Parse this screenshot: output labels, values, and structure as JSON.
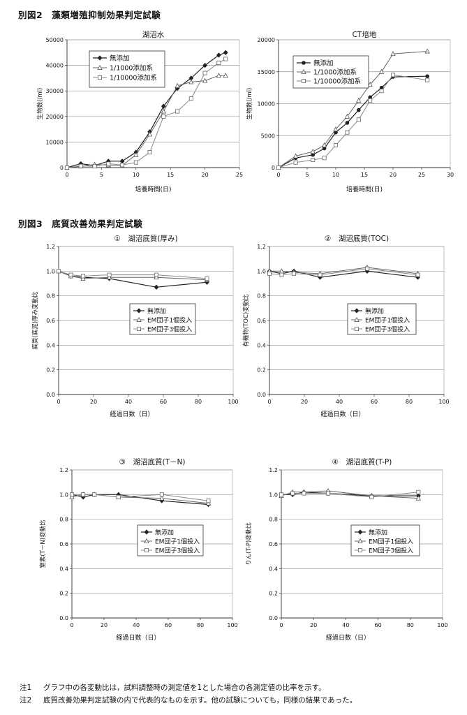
{
  "sections": {
    "fig2_heading": "別図2　藻類増殖抑制効果判定試験",
    "fig3_heading": "別図3　底質改善効果判定試験"
  },
  "chart_data": [
    {
      "id": "c1",
      "type": "line",
      "title": "湖沼水",
      "xlabel": "培養時間(日)",
      "ylabel": "生物数(/ml)",
      "xlim": [
        0,
        25
      ],
      "xticks": [
        0,
        5,
        10,
        15,
        20,
        25
      ],
      "ylim": [
        0,
        50000
      ],
      "yticks": [
        0,
        10000,
        20000,
        30000,
        40000,
        50000
      ],
      "grid": "horizontal",
      "legend_position": "top-left",
      "series": [
        {
          "name": "無添加",
          "marker": "diamond-filled",
          "x": [
            0,
            2,
            4,
            6,
            8,
            10,
            12,
            14,
            16,
            18,
            20,
            22,
            23
          ],
          "y": [
            0,
            1500,
            800,
            2500,
            2500,
            6000,
            14000,
            24000,
            31000,
            35000,
            40000,
            44000,
            45000
          ]
        },
        {
          "name": "1/1000添加系",
          "marker": "triangle-open",
          "x": [
            0,
            2,
            4,
            6,
            8,
            10,
            12,
            14,
            16,
            18,
            20,
            22,
            23
          ],
          "y": [
            0,
            500,
            1200,
            1000,
            800,
            5000,
            13000,
            22000,
            32000,
            33500,
            34000,
            36000,
            36000
          ]
        },
        {
          "name": "1/10000添加系",
          "marker": "square-open",
          "x": [
            0,
            2,
            4,
            6,
            8,
            10,
            12,
            14,
            16,
            18,
            20,
            22,
            23
          ],
          "y": [
            0,
            600,
            500,
            1500,
            1000,
            2000,
            6000,
            20000,
            22000,
            27000,
            37000,
            41000,
            42500
          ]
        }
      ]
    },
    {
      "id": "c2",
      "type": "line",
      "title": "CT培地",
      "xlabel": "培養時間(日)",
      "ylabel": "生物数(/ml)",
      "xlim": [
        0,
        30
      ],
      "xticks": [
        0,
        5,
        10,
        15,
        20,
        25,
        30
      ],
      "ylim": [
        0,
        20000
      ],
      "yticks": [
        0,
        5000,
        10000,
        15000,
        20000
      ],
      "grid": "horizontal",
      "legend_position": "top-left",
      "series": [
        {
          "name": "無添加",
          "marker": "circle-filled",
          "x": [
            0,
            3,
            6,
            8,
            10,
            12,
            14,
            16,
            18,
            20,
            26
          ],
          "y": [
            0,
            1500,
            2000,
            3000,
            5500,
            7000,
            9000,
            11000,
            12500,
            14200,
            14300
          ]
        },
        {
          "name": "1/1000添加系",
          "marker": "triangle-open",
          "x": [
            0,
            3,
            6,
            8,
            10,
            12,
            14,
            16,
            18,
            20,
            26
          ],
          "y": [
            0,
            1800,
            2500,
            3500,
            6000,
            8000,
            10500,
            13000,
            15000,
            17800,
            18200
          ]
        },
        {
          "name": "1/10000添加系",
          "marker": "square-open",
          "x": [
            0,
            3,
            6,
            8,
            10,
            12,
            14,
            16,
            18,
            20,
            26
          ],
          "y": [
            0,
            800,
            1200,
            1500,
            3500,
            5500,
            7500,
            10500,
            12000,
            14500,
            13700
          ]
        }
      ]
    },
    {
      "id": "c3",
      "type": "line",
      "title": "①　湖沼底質(厚み)",
      "xlabel": "経過日数（日）",
      "ylabel": "底質(底泥)厚み変動比",
      "xlim": [
        0,
        100
      ],
      "xticks": [
        0,
        20,
        40,
        60,
        80,
        100
      ],
      "ylim": [
        0,
        1.2
      ],
      "yticks": [
        0.0,
        0.2,
        0.4,
        0.6,
        0.8,
        1.0,
        1.2
      ],
      "grid": "horizontal",
      "legend_position": "center-right",
      "series": [
        {
          "name": "無添加",
          "marker": "diamond-filled",
          "x": [
            0,
            7,
            14,
            29,
            56,
            85
          ],
          "y": [
            1.0,
            0.96,
            0.95,
            0.94,
            0.87,
            0.91
          ]
        },
        {
          "name": "EM団子1個投入",
          "marker": "triangle-open",
          "x": [
            0,
            7,
            14,
            29,
            56,
            85
          ],
          "y": [
            1.0,
            0.96,
            0.94,
            0.95,
            0.95,
            0.93
          ]
        },
        {
          "name": "EM団子3個投入",
          "marker": "square-open",
          "x": [
            0,
            7,
            14,
            29,
            56,
            85
          ],
          "y": [
            1.0,
            0.97,
            0.96,
            0.97,
            0.97,
            0.94
          ]
        }
      ]
    },
    {
      "id": "c4",
      "type": "line",
      "title": "②　湖沼底質(TOC)",
      "xlabel": "経過日数（日）",
      "ylabel": "有機物(TOC)変動比",
      "xlim": [
        0,
        100
      ],
      "xticks": [
        0,
        20,
        40,
        60,
        80,
        100
      ],
      "ylim": [
        0,
        1.2
      ],
      "yticks": [
        0.0,
        0.2,
        0.4,
        0.6,
        0.8,
        1.0,
        1.2
      ],
      "grid": "horizontal",
      "legend_position": "center-right",
      "series": [
        {
          "name": "無添加",
          "marker": "diamond-filled",
          "x": [
            0,
            7,
            14,
            29,
            56,
            85
          ],
          "y": [
            1.0,
            0.98,
            1.0,
            0.95,
            1.0,
            0.95
          ]
        },
        {
          "name": "EM団子1個投入",
          "marker": "triangle-open",
          "x": [
            0,
            7,
            14,
            29,
            56,
            85
          ],
          "y": [
            1.0,
            1.0,
            0.99,
            0.98,
            1.03,
            0.98
          ]
        },
        {
          "name": "EM団子3個投入",
          "marker": "square-open",
          "x": [
            0,
            7,
            14,
            29,
            56,
            85
          ],
          "y": [
            0.98,
            0.97,
            0.98,
            0.97,
            1.02,
            0.97
          ]
        }
      ]
    },
    {
      "id": "c5",
      "type": "line",
      "title": "③　湖沼底質(T－N)",
      "xlabel": "経過日数（日）",
      "ylabel": "窒素(T－N)変動比",
      "xlim": [
        0,
        100
      ],
      "xticks": [
        0,
        20,
        40,
        60,
        80,
        100
      ],
      "ylim": [
        0,
        1.2
      ],
      "yticks": [
        0.0,
        0.2,
        0.4,
        0.6,
        0.8,
        1.0,
        1.2
      ],
      "grid": "horizontal",
      "legend_position": "center-right",
      "series": [
        {
          "name": "無添加",
          "marker": "diamond-filled",
          "x": [
            0,
            7,
            14,
            29,
            56,
            85
          ],
          "y": [
            1.0,
            0.98,
            1.0,
            1.0,
            0.95,
            0.92
          ]
        },
        {
          "name": "EM団子1個投入",
          "marker": "triangle-open",
          "x": [
            0,
            7,
            14,
            29,
            56,
            85
          ],
          "y": [
            0.98,
            1.0,
            1.0,
            0.98,
            0.97,
            0.93
          ]
        },
        {
          "name": "EM団子3個投入",
          "marker": "square-open",
          "x": [
            0,
            7,
            14,
            29,
            56,
            85
          ],
          "y": [
            1.0,
            1.0,
            1.0,
            0.98,
            1.0,
            0.95
          ]
        }
      ]
    },
    {
      "id": "c6",
      "type": "line",
      "title": "④　湖沼底質(T-P)",
      "xlabel": "経過日数（日）",
      "ylabel": "りん(T-P)変動比",
      "xlim": [
        0,
        100
      ],
      "xticks": [
        0,
        20,
        40,
        60,
        80,
        100
      ],
      "ylim": [
        0,
        1.2
      ],
      "yticks": [
        0.0,
        0.2,
        0.4,
        0.6,
        0.8,
        1.0,
        1.2
      ],
      "grid": "horizontal",
      "legend_position": "center-right",
      "series": [
        {
          "name": "無添加",
          "marker": "diamond-filled",
          "x": [
            0,
            7,
            14,
            29,
            56,
            85
          ],
          "y": [
            1.0,
            1.0,
            1.02,
            1.01,
            0.99,
            0.99
          ]
        },
        {
          "name": "EM団子1個投入",
          "marker": "triangle-open",
          "x": [
            0,
            7,
            14,
            29,
            56,
            85
          ],
          "y": [
            0.99,
            1.02,
            1.02,
            1.03,
            0.99,
            0.97
          ]
        },
        {
          "name": "EM団子3個投入",
          "marker": "square-open",
          "x": [
            0,
            7,
            14,
            29,
            56,
            85
          ],
          "y": [
            1.0,
            1.01,
            1.01,
            1.01,
            0.98,
            1.02
          ]
        }
      ]
    }
  ],
  "notes": [
    {
      "label": "注1",
      "text": "グラフ中の各変動比は，試料調整時の測定値を1とした場合の各測定値の比率を示す。"
    },
    {
      "label": "注2",
      "text": "底質改善効果判定試験の内で代表的なものを示す。他の試験についても，同様の結果であった。"
    }
  ]
}
